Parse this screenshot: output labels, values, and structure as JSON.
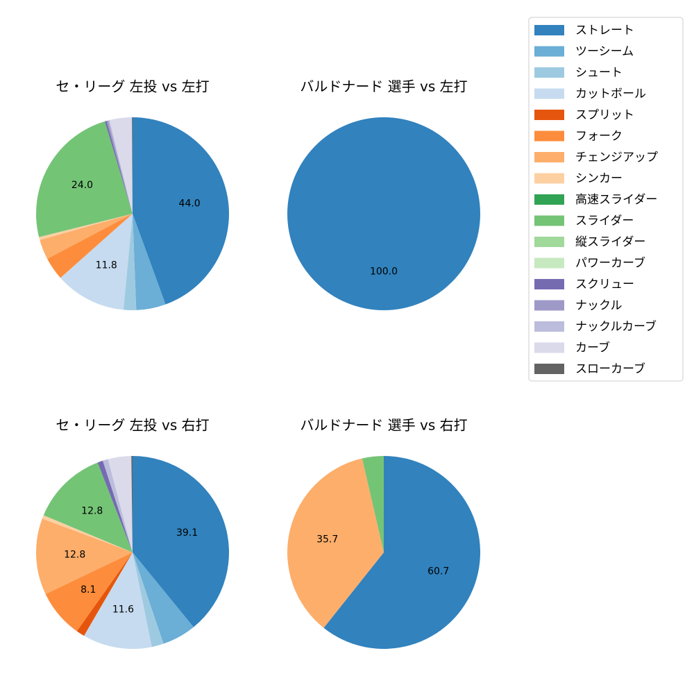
{
  "legend": {
    "entries": [
      {
        "name": "ストレート",
        "color": "#3182bd"
      },
      {
        "name": "ツーシーム",
        "color": "#6baed6"
      },
      {
        "name": "シュート",
        "color": "#9ecae1"
      },
      {
        "name": "カットボール",
        "color": "#c6dbef"
      },
      {
        "name": "スプリット",
        "color": "#e6550d"
      },
      {
        "name": "フォーク",
        "color": "#fd8d3c"
      },
      {
        "name": "チェンジアップ",
        "color": "#fdae6b"
      },
      {
        "name": "シンカー",
        "color": "#fdd0a2"
      },
      {
        "name": "高速スライダー",
        "color": "#31a354"
      },
      {
        "name": "スライダー",
        "color": "#74c476"
      },
      {
        "name": "縦スライダー",
        "color": "#a1d99b"
      },
      {
        "name": "パワーカーブ",
        "color": "#c7e9c0"
      },
      {
        "name": "スクリュー",
        "color": "#756bb1"
      },
      {
        "name": "ナックル",
        "color": "#9e9ac8"
      },
      {
        "name": "ナックルカーブ",
        "color": "#bcbddc"
      },
      {
        "name": "カーブ",
        "color": "#dadaeb"
      },
      {
        "name": "スローカーブ",
        "color": "#636363"
      }
    ]
  },
  "chart_data": [
    {
      "type": "pie",
      "title": "セ・リーグ 左投 vs 左打",
      "start_angle": 90,
      "direction": "clockwise",
      "slices": [
        {
          "name": "ストレート",
          "value": 44.0,
          "label": "44.0"
        },
        {
          "name": "ツーシーム",
          "value": 4.9,
          "label": ""
        },
        {
          "name": "シュート",
          "value": 2.1,
          "label": ""
        },
        {
          "name": "カットボール",
          "value": 11.8,
          "label": "11.8"
        },
        {
          "name": "フォーク",
          "value": 3.8,
          "label": ""
        },
        {
          "name": "チェンジアップ",
          "value": 3.3,
          "label": ""
        },
        {
          "name": "シンカー",
          "value": 0.5,
          "label": ""
        },
        {
          "name": "スライダー",
          "value": 24.0,
          "label": "24.0"
        },
        {
          "name": "スクリュー",
          "value": 0.3,
          "label": ""
        },
        {
          "name": "ナックル",
          "value": 0.3,
          "label": ""
        },
        {
          "name": "ナックルカーブ",
          "value": 0.2,
          "label": ""
        },
        {
          "name": "カーブ",
          "value": 3.7,
          "label": ""
        },
        {
          "name": "スローカーブ",
          "value": 0.1,
          "label": ""
        }
      ]
    },
    {
      "type": "pie",
      "title": "バルドナード 選手 vs 左打",
      "start_angle": 90,
      "direction": "clockwise",
      "slices": [
        {
          "name": "ストレート",
          "value": 100.0,
          "label": "100.0"
        }
      ]
    },
    {
      "type": "pie",
      "title": "セ・リーグ 左投 vs 右打",
      "start_angle": 90,
      "direction": "clockwise",
      "slices": [
        {
          "name": "ストレート",
          "value": 39.1,
          "label": "39.1"
        },
        {
          "name": "ツーシーム",
          "value": 5.7,
          "label": ""
        },
        {
          "name": "シュート",
          "value": 2.0,
          "label": ""
        },
        {
          "name": "カットボール",
          "value": 11.6,
          "label": "11.6"
        },
        {
          "name": "スプリット",
          "value": 1.4,
          "label": ""
        },
        {
          "name": "フォーク",
          "value": 8.1,
          "label": "8.1"
        },
        {
          "name": "チェンジアップ",
          "value": 12.8,
          "label": "12.8"
        },
        {
          "name": "シンカー",
          "value": 0.6,
          "label": ""
        },
        {
          "name": "スライダー",
          "value": 12.8,
          "label": "12.8"
        },
        {
          "name": "スクリュー",
          "value": 0.9,
          "label": ""
        },
        {
          "name": "ナックルカーブ",
          "value": 0.9,
          "label": ""
        },
        {
          "name": "カーブ",
          "value": 3.9,
          "label": ""
        },
        {
          "name": "スローカーブ",
          "value": 0.2,
          "label": ""
        }
      ]
    },
    {
      "type": "pie",
      "title": "バルドナード 選手 vs 右打",
      "start_angle": 90,
      "direction": "clockwise",
      "slices": [
        {
          "name": "ストレート",
          "value": 60.7,
          "label": "60.7"
        },
        {
          "name": "チェンジアップ",
          "value": 35.7,
          "label": "35.7"
        },
        {
          "name": "スライダー",
          "value": 3.6,
          "label": ""
        }
      ]
    }
  ]
}
